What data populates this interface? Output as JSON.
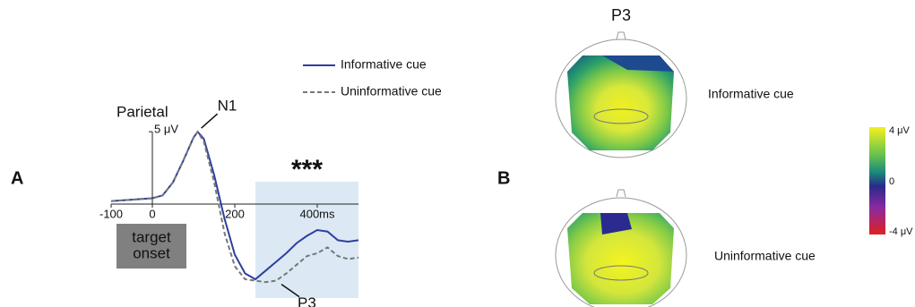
{
  "chart_data": {
    "type": "line",
    "panel_label": "A",
    "title": "Parietal",
    "x": [
      -100,
      -75,
      -50,
      -25,
      0,
      25,
      50,
      75,
      100,
      110,
      125,
      150,
      175,
      200,
      225,
      250,
      275,
      300,
      325,
      350,
      375,
      400,
      425,
      450,
      475,
      500
    ],
    "series": [
      {
        "name": "Informative cue",
        "color": "#2e3f9e",
        "dash": false,
        "values": [
          0.2,
          0.25,
          0.3,
          0.35,
          0.4,
          0.6,
          1.5,
          3,
          4.6,
          5,
          4.5,
          2,
          -1,
          -3.5,
          -4.8,
          -5.2,
          -4.6,
          -4,
          -3.4,
          -2.7,
          -2.2,
          -1.8,
          -1.9,
          -2.5,
          -2.6,
          -2.5
        ]
      },
      {
        "name": "Uninformative cue",
        "color": "#777777",
        "dash": true,
        "values": [
          0.2,
          0.25,
          0.3,
          0.35,
          0.4,
          0.6,
          1.5,
          3,
          4.6,
          5,
          4.3,
          1.5,
          -2,
          -4.3,
          -5.2,
          -5.3,
          -5.4,
          -5.3,
          -4.8,
          -4.2,
          -3.6,
          -3.4,
          -3.0,
          -3.6,
          -3.8,
          -3.7
        ]
      }
    ],
    "xlim": [
      -100,
      500
    ],
    "ylim": [
      -6.5,
      6
    ],
    "xticks": [
      -100,
      0,
      200,
      {
        "value": 400,
        "label": "400ms"
      }
    ],
    "yticks": [
      {
        "value": 5,
        "label": "5 μV"
      }
    ],
    "highlight": {
      "xlim": [
        250,
        500
      ],
      "label": "***",
      "color": "#dce9f5"
    },
    "annotations": [
      {
        "text": "N1",
        "x": 110,
        "y": 5
      },
      {
        "text": "P3",
        "x": 300,
        "y": -5.3
      }
    ],
    "onset_box": [
      "target",
      "onset"
    ]
  },
  "panel_b": {
    "panel_label": "B",
    "title": "P3",
    "maps": [
      "Informative cue",
      "Uninformative cue"
    ],
    "colorbar_labels": [
      "4 μV",
      "0",
      "-4 μV"
    ]
  }
}
